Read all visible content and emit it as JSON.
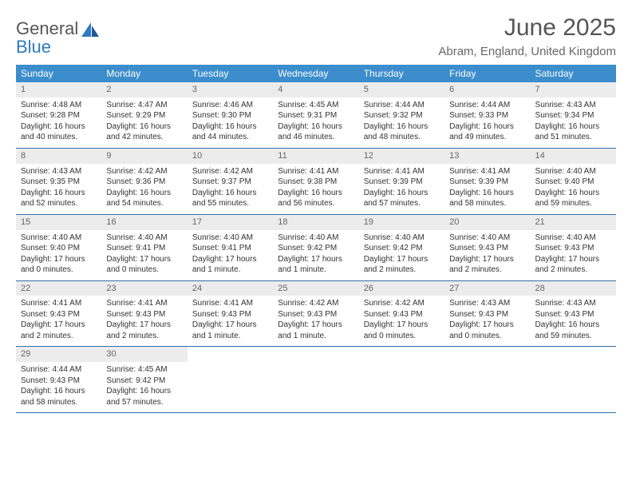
{
  "brand": {
    "top": "General",
    "bottom": "Blue"
  },
  "title": "June 2025",
  "location": "Abram, England, United Kingdom",
  "colors": {
    "header_bg": "#3c8dcc",
    "header_text": "#ffffff",
    "daynum_bg": "#ececec",
    "daynum_text": "#666666",
    "row_border": "#2f6fa8",
    "brand_accent": "#2f7ac0",
    "body_text": "#333333",
    "background": "#ffffff"
  },
  "weekdays": [
    "Sunday",
    "Monday",
    "Tuesday",
    "Wednesday",
    "Thursday",
    "Friday",
    "Saturday"
  ],
  "days": [
    {
      "n": "1",
      "sr": "Sunrise: 4:48 AM",
      "ss": "Sunset: 9:28 PM",
      "d1": "Daylight: 16 hours",
      "d2": "and 40 minutes."
    },
    {
      "n": "2",
      "sr": "Sunrise: 4:47 AM",
      "ss": "Sunset: 9:29 PM",
      "d1": "Daylight: 16 hours",
      "d2": "and 42 minutes."
    },
    {
      "n": "3",
      "sr": "Sunrise: 4:46 AM",
      "ss": "Sunset: 9:30 PM",
      "d1": "Daylight: 16 hours",
      "d2": "and 44 minutes."
    },
    {
      "n": "4",
      "sr": "Sunrise: 4:45 AM",
      "ss": "Sunset: 9:31 PM",
      "d1": "Daylight: 16 hours",
      "d2": "and 46 minutes."
    },
    {
      "n": "5",
      "sr": "Sunrise: 4:44 AM",
      "ss": "Sunset: 9:32 PM",
      "d1": "Daylight: 16 hours",
      "d2": "and 48 minutes."
    },
    {
      "n": "6",
      "sr": "Sunrise: 4:44 AM",
      "ss": "Sunset: 9:33 PM",
      "d1": "Daylight: 16 hours",
      "d2": "and 49 minutes."
    },
    {
      "n": "7",
      "sr": "Sunrise: 4:43 AM",
      "ss": "Sunset: 9:34 PM",
      "d1": "Daylight: 16 hours",
      "d2": "and 51 minutes."
    },
    {
      "n": "8",
      "sr": "Sunrise: 4:43 AM",
      "ss": "Sunset: 9:35 PM",
      "d1": "Daylight: 16 hours",
      "d2": "and 52 minutes."
    },
    {
      "n": "9",
      "sr": "Sunrise: 4:42 AM",
      "ss": "Sunset: 9:36 PM",
      "d1": "Daylight: 16 hours",
      "d2": "and 54 minutes."
    },
    {
      "n": "10",
      "sr": "Sunrise: 4:42 AM",
      "ss": "Sunset: 9:37 PM",
      "d1": "Daylight: 16 hours",
      "d2": "and 55 minutes."
    },
    {
      "n": "11",
      "sr": "Sunrise: 4:41 AM",
      "ss": "Sunset: 9:38 PM",
      "d1": "Daylight: 16 hours",
      "d2": "and 56 minutes."
    },
    {
      "n": "12",
      "sr": "Sunrise: 4:41 AM",
      "ss": "Sunset: 9:39 PM",
      "d1": "Daylight: 16 hours",
      "d2": "and 57 minutes."
    },
    {
      "n": "13",
      "sr": "Sunrise: 4:41 AM",
      "ss": "Sunset: 9:39 PM",
      "d1": "Daylight: 16 hours",
      "d2": "and 58 minutes."
    },
    {
      "n": "14",
      "sr": "Sunrise: 4:40 AM",
      "ss": "Sunset: 9:40 PM",
      "d1": "Daylight: 16 hours",
      "d2": "and 59 minutes."
    },
    {
      "n": "15",
      "sr": "Sunrise: 4:40 AM",
      "ss": "Sunset: 9:40 PM",
      "d1": "Daylight: 17 hours",
      "d2": "and 0 minutes."
    },
    {
      "n": "16",
      "sr": "Sunrise: 4:40 AM",
      "ss": "Sunset: 9:41 PM",
      "d1": "Daylight: 17 hours",
      "d2": "and 0 minutes."
    },
    {
      "n": "17",
      "sr": "Sunrise: 4:40 AM",
      "ss": "Sunset: 9:41 PM",
      "d1": "Daylight: 17 hours",
      "d2": "and 1 minute."
    },
    {
      "n": "18",
      "sr": "Sunrise: 4:40 AM",
      "ss": "Sunset: 9:42 PM",
      "d1": "Daylight: 17 hours",
      "d2": "and 1 minute."
    },
    {
      "n": "19",
      "sr": "Sunrise: 4:40 AM",
      "ss": "Sunset: 9:42 PM",
      "d1": "Daylight: 17 hours",
      "d2": "and 2 minutes."
    },
    {
      "n": "20",
      "sr": "Sunrise: 4:40 AM",
      "ss": "Sunset: 9:43 PM",
      "d1": "Daylight: 17 hours",
      "d2": "and 2 minutes."
    },
    {
      "n": "21",
      "sr": "Sunrise: 4:40 AM",
      "ss": "Sunset: 9:43 PM",
      "d1": "Daylight: 17 hours",
      "d2": "and 2 minutes."
    },
    {
      "n": "22",
      "sr": "Sunrise: 4:41 AM",
      "ss": "Sunset: 9:43 PM",
      "d1": "Daylight: 17 hours",
      "d2": "and 2 minutes."
    },
    {
      "n": "23",
      "sr": "Sunrise: 4:41 AM",
      "ss": "Sunset: 9:43 PM",
      "d1": "Daylight: 17 hours",
      "d2": "and 2 minutes."
    },
    {
      "n": "24",
      "sr": "Sunrise: 4:41 AM",
      "ss": "Sunset: 9:43 PM",
      "d1": "Daylight: 17 hours",
      "d2": "and 1 minute."
    },
    {
      "n": "25",
      "sr": "Sunrise: 4:42 AM",
      "ss": "Sunset: 9:43 PM",
      "d1": "Daylight: 17 hours",
      "d2": "and 1 minute."
    },
    {
      "n": "26",
      "sr": "Sunrise: 4:42 AM",
      "ss": "Sunset: 9:43 PM",
      "d1": "Daylight: 17 hours",
      "d2": "and 0 minutes."
    },
    {
      "n": "27",
      "sr": "Sunrise: 4:43 AM",
      "ss": "Sunset: 9:43 PM",
      "d1": "Daylight: 17 hours",
      "d2": "and 0 minutes."
    },
    {
      "n": "28",
      "sr": "Sunrise: 4:43 AM",
      "ss": "Sunset: 9:43 PM",
      "d1": "Daylight: 16 hours",
      "d2": "and 59 minutes."
    },
    {
      "n": "29",
      "sr": "Sunrise: 4:44 AM",
      "ss": "Sunset: 9:43 PM",
      "d1": "Daylight: 16 hours",
      "d2": "and 58 minutes."
    },
    {
      "n": "30",
      "sr": "Sunrise: 4:45 AM",
      "ss": "Sunset: 9:42 PM",
      "d1": "Daylight: 16 hours",
      "d2": "and 57 minutes."
    }
  ]
}
